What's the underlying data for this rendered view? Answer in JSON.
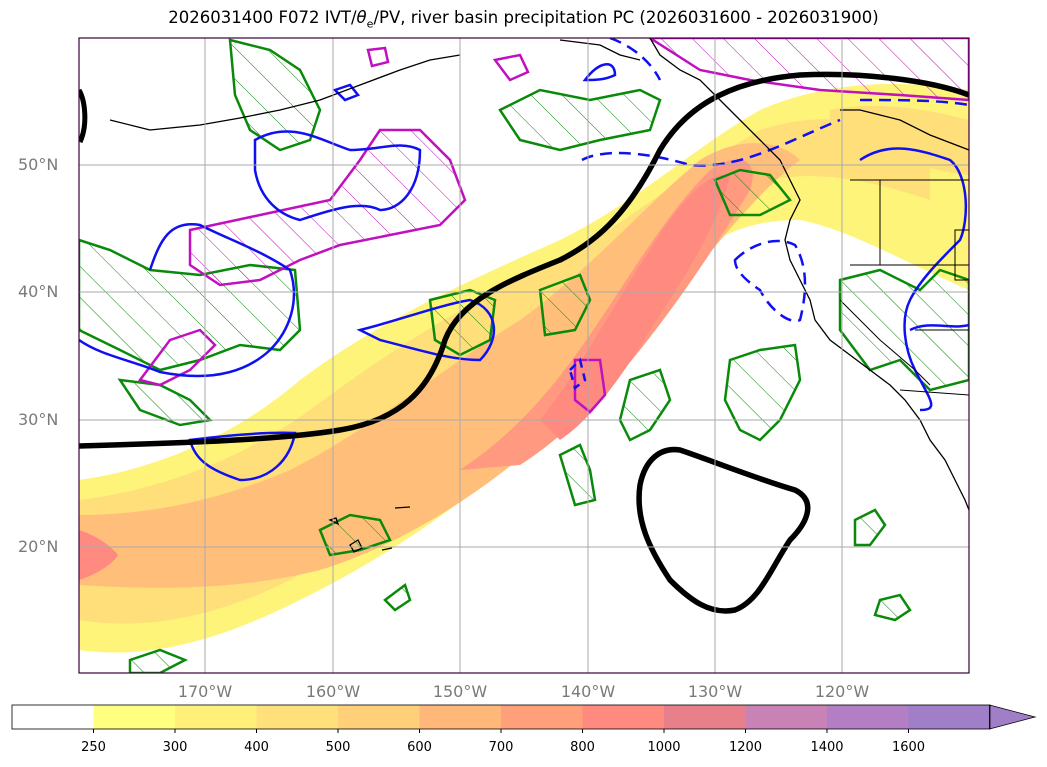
{
  "title_parts": {
    "prefix": "2026031400 F072 IVT/",
    "theta": "θ",
    "sub": "e",
    "suffix": "/PV, river basin precipitation PC (2026031600 - 2026031900)"
  },
  "lat_labels": [
    "50°N",
    "40°N",
    "30°N",
    "20°N"
  ],
  "lon_labels": [
    "170°W",
    "160°W",
    "150°W",
    "140°W",
    "130°W",
    "120°W"
  ],
  "colorbar": {
    "ticks": [
      "250",
      "300",
      "400",
      "500",
      "600",
      "700",
      "800",
      "1000",
      "1200",
      "1400",
      "1600"
    ],
    "colors": [
      "#ffffff",
      "#ffff80",
      "#fff07a",
      "#ffe07a",
      "#ffcf7a",
      "#ffb87a",
      "#ffa07a",
      "#ff8a80",
      "#e7808a",
      "#c882b5",
      "#b27fc4",
      "#a07ec8"
    ]
  },
  "colors": {
    "ivt_core": "#ff8a80",
    "ivt_outer": "#fff07a",
    "contour_green": "#0a8a0a",
    "contour_blue": "#1010f0",
    "contour_magenta": "#c010c0",
    "contour_black": "#000000"
  }
}
